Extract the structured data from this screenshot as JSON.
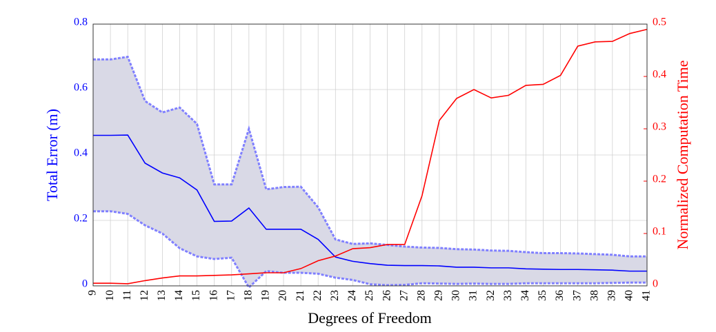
{
  "chart_data": {
    "type": "line",
    "xlabel": "Degrees of Freedom",
    "ylabel": "Total Error (m)",
    "y2label": "Normalized Computation Time",
    "x": [
      9,
      10,
      11,
      12,
      13,
      14,
      15,
      16,
      17,
      18,
      19,
      20,
      21,
      22,
      23,
      24,
      25,
      26,
      27,
      28,
      29,
      30,
      31,
      32,
      33,
      34,
      35,
      36,
      37,
      38,
      39,
      40,
      41
    ],
    "xlim": [
      9,
      41
    ],
    "xticks": [
      9,
      10,
      11,
      12,
      13,
      14,
      15,
      16,
      17,
      18,
      19,
      20,
      21,
      22,
      23,
      24,
      25,
      26,
      27,
      28,
      29,
      30,
      31,
      32,
      33,
      34,
      35,
      36,
      37,
      38,
      39,
      40,
      41
    ],
    "ylim": [
      0,
      0.8
    ],
    "yticks": [
      0,
      0.2,
      0.4,
      0.6,
      0.8
    ],
    "y2lim": [
      0,
      0.5
    ],
    "y2ticks": [
      0,
      0.1,
      0.2,
      0.3,
      0.4,
      0.5
    ],
    "grid": true,
    "fill": {
      "between": [
        1,
        2
      ],
      "color": "#d9d9e6"
    },
    "series": [
      {
        "color": "#0000ff",
        "style": "solid",
        "values": [
          0.46,
          0.46,
          0.461,
          0.375,
          0.345,
          0.33,
          0.293,
          0.197,
          0.198,
          0.238,
          0.173,
          0.173,
          0.173,
          0.142,
          0.088,
          0.075,
          0.068,
          0.063,
          0.062,
          0.062,
          0.061,
          0.057,
          0.057,
          0.055,
          0.055,
          0.052,
          0.051,
          0.05,
          0.05,
          0.049,
          0.048,
          0.045,
          0.045
        ]
      },
      {
        "color": "#8080ff",
        "style": "dashed",
        "values": [
          0.692,
          0.692,
          0.7,
          0.565,
          0.53,
          0.545,
          0.495,
          0.31,
          0.31,
          0.48,
          0.295,
          0.302,
          0.303,
          0.24,
          0.142,
          0.128,
          0.13,
          0.125,
          0.12,
          0.117,
          0.116,
          0.112,
          0.111,
          0.108,
          0.107,
          0.103,
          0.1,
          0.1,
          0.099,
          0.097,
          0.095,
          0.09,
          0.09
        ]
      },
      {
        "color": "#8080ff",
        "style": "dashed",
        "values": [
          0.228,
          0.228,
          0.22,
          0.185,
          0.16,
          0.115,
          0.09,
          0.082,
          0.086,
          -0.005,
          0.045,
          0.04,
          0.04,
          0.037,
          0.025,
          0.018,
          0.005,
          0.002,
          0.003,
          0.008,
          0.007,
          0.006,
          0.007,
          0.006,
          0.006,
          0.008,
          0.008,
          0.008,
          0.008,
          0.008,
          0.009,
          0.01,
          0.01
        ]
      },
      {
        "color": "#ff0000",
        "style": "solid",
        "axis": "y2",
        "values": [
          0.005,
          0.005,
          0.004,
          0.01,
          0.015,
          0.019,
          0.019,
          0.02,
          0.021,
          0.023,
          0.025,
          0.025,
          0.033,
          0.048,
          0.057,
          0.071,
          0.073,
          0.079,
          0.079,
          0.172,
          0.316,
          0.358,
          0.375,
          0.359,
          0.364,
          0.383,
          0.385,
          0.402,
          0.458,
          0.466,
          0.467,
          0.482,
          0.49
        ]
      }
    ]
  }
}
